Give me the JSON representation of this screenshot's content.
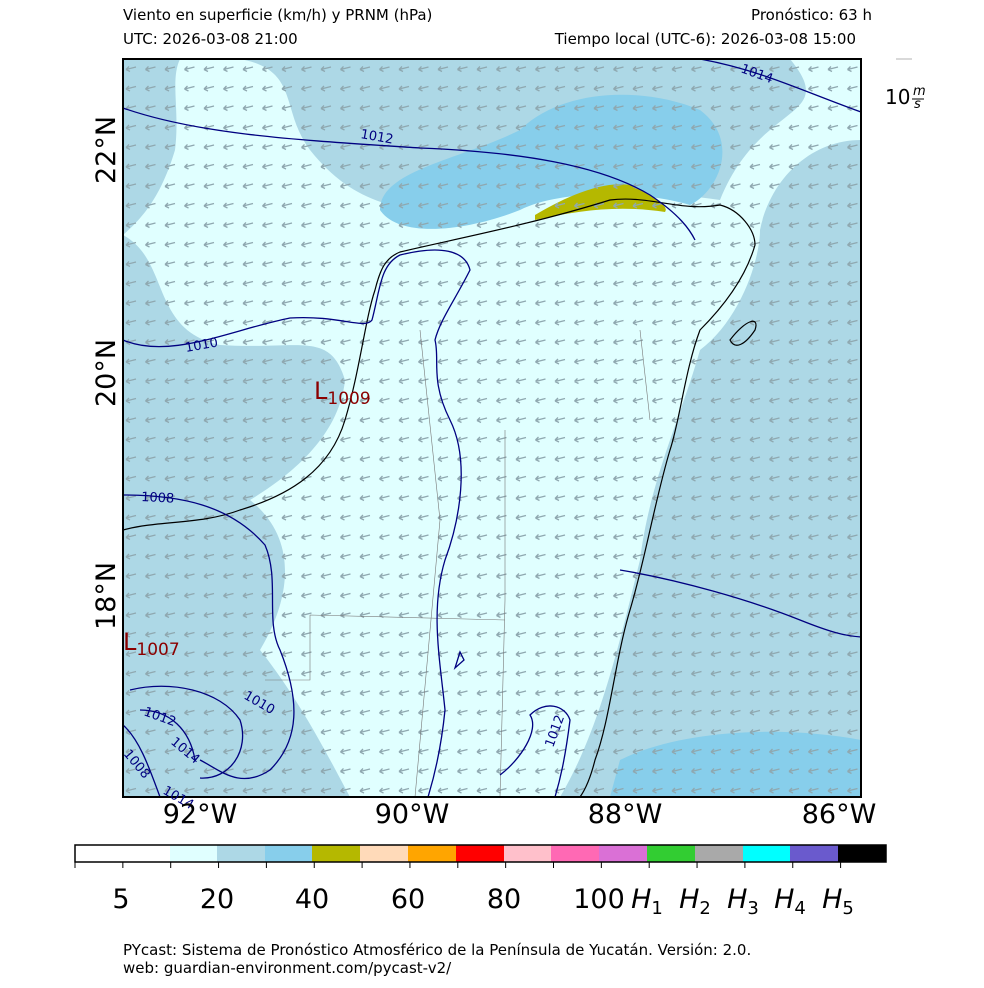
{
  "header": {
    "title": "Viento en superficie (km/h) y PRNM (hPa)",
    "forecast": "Pronóstico: 63 h",
    "utc": "UTC:  2026-03-08 21:00",
    "local": "Tiempo local (UTC-6): 2026-03-08 15:00"
  },
  "map": {
    "lon_labels": [
      "92°W",
      "90°W",
      "88°W",
      "86°W"
    ],
    "lat_labels": [
      "22°N",
      "20°N",
      "18°N"
    ],
    "isobar_labels": [
      "1014",
      "1012",
      "1010",
      "1008",
      "1010",
      "1012",
      "1014",
      "1012",
      "1008",
      "1014"
    ],
    "lows": [
      {
        "letter": "L",
        "value": "1009"
      },
      {
        "letter": "L",
        "value": "1007"
      }
    ],
    "wind_scale": {
      "number": "10",
      "num": "m",
      "den": "s"
    }
  },
  "colorbar": {
    "colors": [
      "#ffffff",
      "#e0ffff",
      "#add8e6",
      "#87ceeb",
      "#b5b800",
      "#ffdab9",
      "#ffa500",
      "#ff0000",
      "#ffc0cb",
      "#ff69b4",
      "#da70d6",
      "#32cd32",
      "#a9a9a9",
      "#00ffff",
      "#6a5acd",
      "#000000"
    ],
    "labels": [
      {
        "text": "5"
      },
      {
        "text": "20"
      },
      {
        "text": "40"
      },
      {
        "text": "60"
      },
      {
        "text": "80"
      },
      {
        "text": "100"
      },
      {
        "text": "H",
        "sub": "1"
      },
      {
        "text": "H",
        "sub": "2"
      },
      {
        "text": "H",
        "sub": "3"
      },
      {
        "text": "H",
        "sub": "4"
      },
      {
        "text": "H",
        "sub": "5"
      }
    ]
  },
  "footer": {
    "line1": "PYcast: Sistema de Pronóstico Atmosférico de la Península de Yucatán. Versión: 2.0.",
    "line2": "web: guardian-environment.com/pycast-v2/"
  }
}
